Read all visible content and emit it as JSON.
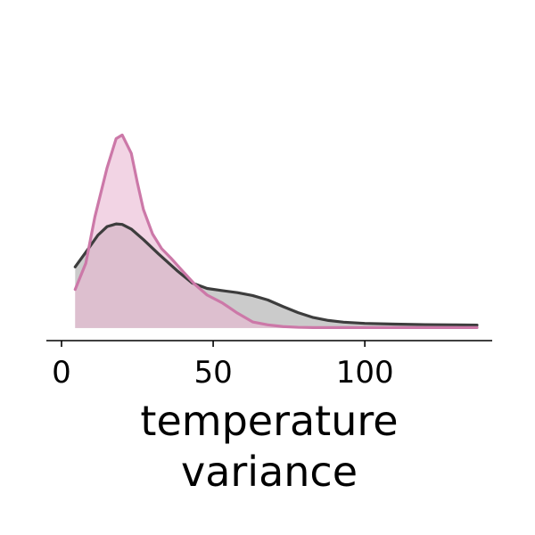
{
  "chart_data": {
    "type": "area",
    "title": "",
    "xlabel_lines": [
      "temperature",
      "variance"
    ],
    "ylabel": "",
    "xlim": [
      -5,
      142
    ],
    "ylim": [
      -0.0015,
      0.0795
    ],
    "xticks": [
      0,
      50,
      100
    ],
    "x_tick_labels": [
      "0",
      "50",
      "100"
    ],
    "grid": false,
    "legend": "none",
    "y_axis_visible": false,
    "series": [
      {
        "style_key": "gray",
        "color": "#3d3d3d",
        "fill": "#a9a9a9",
        "x": [
          4.5,
          8,
          12,
          15,
          18,
          20,
          23,
          27,
          32,
          38,
          43,
          48,
          53,
          58,
          63,
          68,
          73,
          78,
          83,
          88,
          93,
          100,
          110,
          120,
          130,
          137
        ],
        "y": [
          0.025,
          0.031,
          0.038,
          0.0415,
          0.0426,
          0.0424,
          0.0405,
          0.0362,
          0.0303,
          0.0236,
          0.0185,
          0.0162,
          0.0153,
          0.0145,
          0.0133,
          0.0115,
          0.0088,
          0.0063,
          0.0043,
          0.0031,
          0.0024,
          0.0019,
          0.0016,
          0.0014,
          0.0013,
          0.0012
        ]
      },
      {
        "style_key": "pink",
        "color": "#cc78a8",
        "fill": "#e9b8d2",
        "x": [
          4.5,
          8,
          11,
          15,
          18,
          20,
          23,
          25,
          27,
          30,
          33,
          36,
          40,
          44,
          48,
          53,
          58,
          63,
          68,
          73,
          78,
          83,
          90,
          100,
          110,
          120,
          130,
          137
        ],
        "y": [
          0.0158,
          0.0265,
          0.0455,
          0.0655,
          0.0775,
          0.079,
          0.0715,
          0.0595,
          0.0485,
          0.0385,
          0.0325,
          0.0287,
          0.0232,
          0.0178,
          0.0135,
          0.0103,
          0.0061,
          0.0025,
          0.0013,
          0.0006,
          0.0003,
          0.0002,
          0.0002,
          0.0002,
          0.0002,
          0.0002,
          0.0002,
          0.0002
        ]
      }
    ]
  }
}
